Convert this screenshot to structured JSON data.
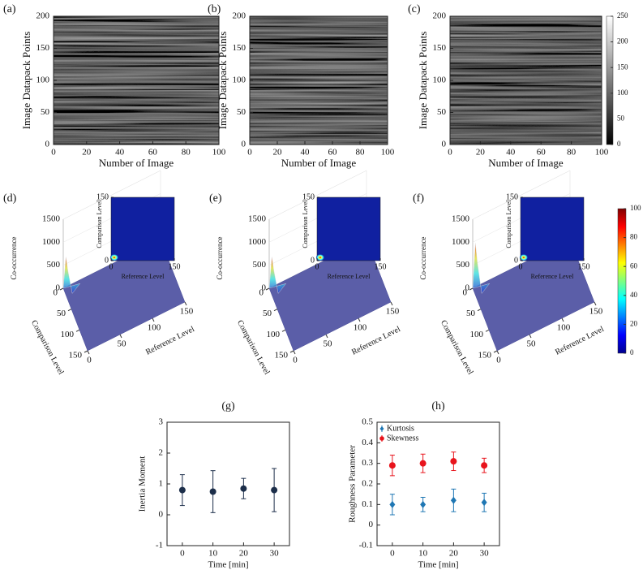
{
  "chart_data": [
    {
      "type": "heatmap",
      "panel": "(a)",
      "xlabel": "Number of Image",
      "ylabel": "Image Datapack Points",
      "xlim": [
        0,
        100
      ],
      "ylim": [
        0,
        200
      ],
      "xticks": [
        0,
        20,
        40,
        60,
        80,
        100
      ],
      "yticks": [
        0,
        50,
        100,
        150,
        200
      ]
    },
    {
      "type": "heatmap",
      "panel": "(b)",
      "xlabel": "Number of Image",
      "ylabel": "Image Datapack Points",
      "xlim": [
        0,
        100
      ],
      "ylim": [
        0,
        200
      ],
      "xticks": [
        0,
        20,
        40,
        60,
        80,
        100
      ],
      "yticks": [
        0,
        50,
        100,
        150,
        200
      ]
    },
    {
      "type": "heatmap",
      "panel": "(c)",
      "xlabel": "Number of Image",
      "ylabel": "Image Datapack Points",
      "xlim": [
        0,
        100
      ],
      "ylim": [
        0,
        200
      ],
      "xticks": [
        0,
        20,
        40,
        60,
        80,
        100
      ],
      "yticks": [
        0,
        50,
        100,
        150,
        200
      ],
      "colorbar": {
        "colormap": "gray",
        "clim": [
          0,
          250
        ],
        "ticks": [
          0,
          50,
          100,
          150,
          200,
          250
        ]
      }
    },
    {
      "type": "surface3d",
      "panel": "(d)",
      "zlabel": "Co-occurrence",
      "ylabel": "Comparison Level",
      "xlabel": "Reference Level",
      "xlim": [
        0,
        150
      ],
      "ylim": [
        0,
        150
      ],
      "zlim": [
        0,
        1500
      ],
      "xticks": [
        0,
        50,
        100,
        150
      ],
      "yticks": [
        0,
        50,
        100,
        150
      ],
      "zticks": [
        0,
        500,
        1000,
        1500
      ],
      "peak": 700,
      "inset": {
        "xlabel": "Reference Level",
        "ylabel": "Comparison Level",
        "xlim": [
          0,
          150
        ],
        "ylim": [
          0,
          150
        ],
        "xticks": [
          0,
          150
        ],
        "yticks": [
          0,
          150
        ]
      }
    },
    {
      "type": "surface3d",
      "panel": "(e)",
      "zlabel": "Co-occurrence",
      "ylabel": "Comparison Level",
      "xlabel": "Reference Level",
      "xlim": [
        0,
        150
      ],
      "ylim": [
        0,
        150
      ],
      "zlim": [
        0,
        1500
      ],
      "xticks": [
        0,
        50,
        100,
        150
      ],
      "yticks": [
        0,
        50,
        100,
        150
      ],
      "zticks": [
        0,
        500,
        1000,
        1500
      ],
      "peak": 700,
      "inset": {
        "xlabel": "Reference Level",
        "ylabel": "Comparison Level",
        "xlim": [
          0,
          150
        ],
        "ylim": [
          0,
          150
        ],
        "xticks": [
          0,
          150
        ],
        "yticks": [
          0,
          150
        ]
      }
    },
    {
      "type": "surface3d",
      "panel": "(f)",
      "zlabel": "Co-occurrence",
      "ylabel": "Comparison Level",
      "xlabel": "Reference Level",
      "xlim": [
        0,
        150
      ],
      "ylim": [
        0,
        150
      ],
      "zlim": [
        0,
        1500
      ],
      "xticks": [
        0,
        50,
        100,
        150
      ],
      "yticks": [
        0,
        50,
        100,
        150
      ],
      "zticks": [
        0,
        500,
        1000,
        1500
      ],
      "peak": 1000,
      "inset": {
        "xlabel": "Reference Level",
        "ylabel": "Comparison Level",
        "xlim": [
          0,
          150
        ],
        "ylim": [
          0,
          150
        ],
        "xticks": [
          0,
          150
        ],
        "yticks": [
          0,
          150
        ]
      },
      "colorbar": {
        "colormap": "jet",
        "clim": [
          0,
          100
        ],
        "ticks": [
          0,
          20,
          40,
          60,
          80,
          100
        ]
      }
    },
    {
      "type": "errorbar",
      "panel": "(g)",
      "xlabel": "Time [min]",
      "ylabel": "Inertia Moment",
      "x": [
        0,
        10,
        20,
        30
      ],
      "xlim": [
        -5,
        35
      ],
      "xticks": [
        0,
        10,
        20,
        30
      ],
      "ylim": [
        -1,
        3
      ],
      "yticks": [
        -1,
        0,
        1,
        2,
        3
      ],
      "series": [
        {
          "color": "#1c2e4a",
          "marker": "circle",
          "values": [
            0.8,
            0.75,
            0.85,
            0.8
          ],
          "errors": [
            0.5,
            0.68,
            0.33,
            0.7
          ]
        }
      ]
    },
    {
      "type": "errorbar",
      "panel": "(h)",
      "xlabel": "Time [min]",
      "ylabel": "Roughness Parameter",
      "x": [
        0,
        10,
        20,
        30
      ],
      "xlim": [
        -5,
        35
      ],
      "xticks": [
        0,
        10,
        20,
        30
      ],
      "ylim": [
        -0.1,
        0.5
      ],
      "yticks": [
        -0.1,
        0,
        0.1,
        0.2,
        0.3,
        0.4,
        0.5
      ],
      "legend": "upper left",
      "series": [
        {
          "name": "Kurtosis",
          "color": "#1f77b4",
          "marker": "diamond",
          "values": [
            0.1,
            0.1,
            0.12,
            0.11
          ],
          "errors": [
            0.05,
            0.035,
            0.055,
            0.045
          ]
        },
        {
          "name": "Skewness",
          "color": "#e8141c",
          "marker": "circle",
          "values": [
            0.29,
            0.3,
            0.31,
            0.29
          ],
          "errors": [
            0.05,
            0.045,
            0.045,
            0.035
          ]
        }
      ]
    }
  ]
}
